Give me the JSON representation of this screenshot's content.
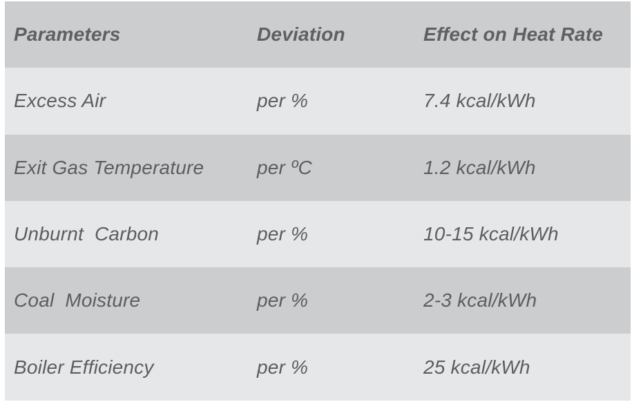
{
  "table": {
    "headers": [
      "Parameters",
      "Deviation",
      "Effect on Heat Rate"
    ],
    "rows": [
      [
        "Excess Air",
        "per %",
        "7.4 kcal/kWh"
      ],
      [
        "Exit Gas Temperature",
        "per ºC",
        "1.2 kcal/kWh"
      ],
      [
        "Unburnt  Carbon",
        "per %",
        "10-15 kcal/kWh"
      ],
      [
        "Coal  Moisture",
        "per %",
        "2-3 kcal/kWh"
      ],
      [
        "Boiler Efficiency",
        "per %",
        "25 kcal/kWh"
      ]
    ],
    "colors": {
      "shade_dark": "#cbcdcf",
      "shade_light": "#e6e7e8",
      "text": "#5c5d5f"
    }
  }
}
